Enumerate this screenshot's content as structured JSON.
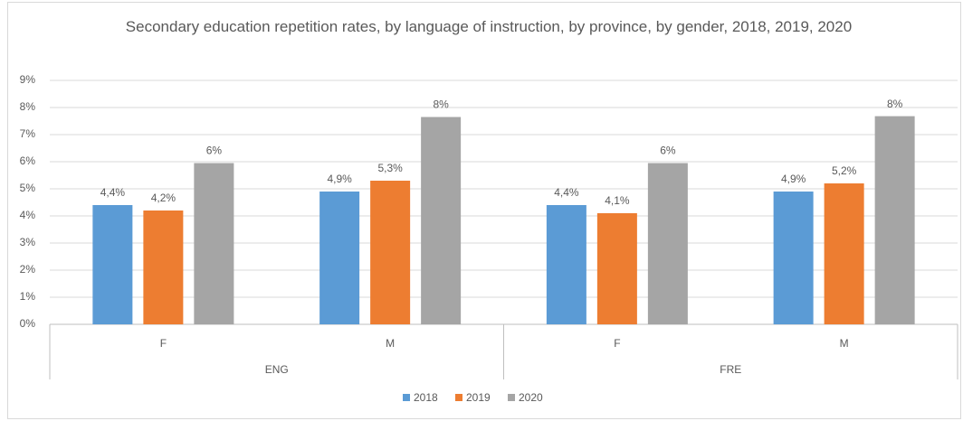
{
  "chart_data": {
    "type": "bar",
    "title": "Secondary education repetition rates, by language of instruction, by province, by gender, 2018, 2019, 2020",
    "categories": [
      "F",
      "M",
      "F",
      "M"
    ],
    "groups": [
      "ENG",
      "FRE"
    ],
    "series": [
      {
        "name": "2018",
        "color": "#5b9bd5",
        "values": [
          4.4,
          4.9,
          4.4,
          4.9
        ],
        "value_labels": [
          "4,4%",
          "4,9%",
          "4,4%",
          "4,9%"
        ]
      },
      {
        "name": "2019",
        "color": "#ed7d31",
        "values": [
          4.2,
          5.3,
          4.1,
          5.2
        ],
        "value_labels": [
          "4,2%",
          "5,3%",
          "4,1%",
          "5,2%"
        ]
      },
      {
        "name": "2020",
        "color": "#a5a5a5",
        "values": [
          5.95,
          7.65,
          5.95,
          7.68
        ],
        "value_labels": [
          "6%",
          "8%",
          "6%",
          "8%"
        ]
      }
    ],
    "ylim": [
      0,
      9
    ],
    "yticks": [
      {
        "value": 0,
        "label": "0%"
      },
      {
        "value": 1,
        "label": "1%"
      },
      {
        "value": 2,
        "label": "2%"
      },
      {
        "value": 3,
        "label": "3%"
      },
      {
        "value": 4,
        "label": "4%"
      },
      {
        "value": 5,
        "label": "5%"
      },
      {
        "value": 6,
        "label": "6%"
      },
      {
        "value": 7,
        "label": "7%"
      },
      {
        "value": 8,
        "label": "8%"
      },
      {
        "value": 9,
        "label": "9%"
      }
    ],
    "grid": true,
    "legend": "bottom"
  }
}
